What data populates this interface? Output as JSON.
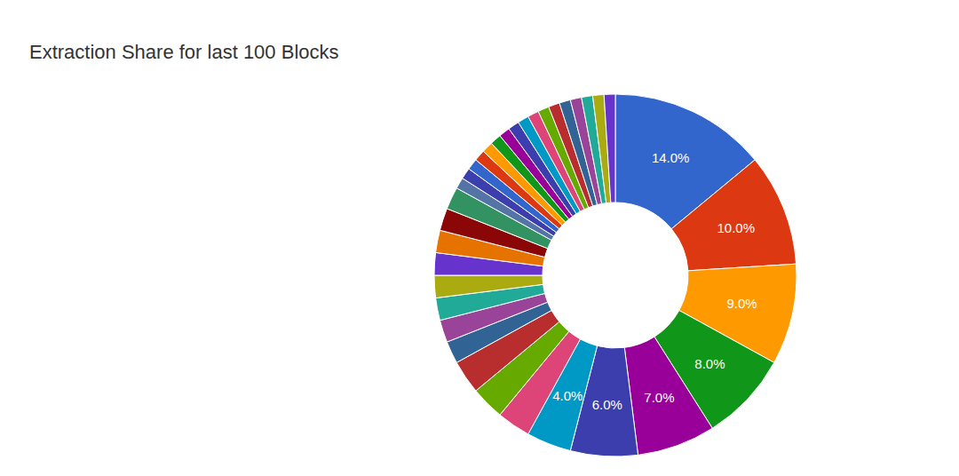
{
  "chart_data": {
    "type": "pie",
    "title": "Extraction Share for last 100 Blocks",
    "values": [
      14,
      10,
      9,
      8,
      7,
      6,
      4,
      3,
      3,
      3,
      2,
      2,
      2,
      2,
      2,
      2,
      2,
      2,
      1,
      1,
      1,
      1,
      1,
      1,
      1,
      1,
      1,
      1,
      1,
      1,
      1,
      1,
      1,
      1,
      1
    ],
    "value_labels": [
      "14.0%",
      "10.0%",
      "9.0%",
      "8.0%",
      "7.0%",
      "6.0%",
      "4.0%",
      null,
      null,
      null,
      null,
      null,
      null,
      null,
      null,
      null,
      null,
      null,
      null,
      null,
      null,
      null,
      null,
      null,
      null,
      null,
      null,
      null,
      null,
      null,
      null,
      null,
      null,
      null,
      null
    ],
    "colors": [
      "#3366cc",
      "#dc3912",
      "#ff9900",
      "#109618",
      "#990099",
      "#3b3eac",
      "#0099c6",
      "#dd4477",
      "#66aa00",
      "#b82e2e",
      "#316395",
      "#994499",
      "#22aa99",
      "#aaaa11",
      "#6633cc",
      "#e67300",
      "#8b0707",
      "#329262",
      "#5574a6",
      "#3b3eac",
      "#3366cc",
      "#dc3912",
      "#ff9900",
      "#109618",
      "#990099",
      "#3b3eac",
      "#0099c6",
      "#dd4477",
      "#66aa00",
      "#b82e2e",
      "#316395",
      "#994499",
      "#22aa99",
      "#aaaa11",
      "#6633cc"
    ],
    "data_labels": true
  }
}
